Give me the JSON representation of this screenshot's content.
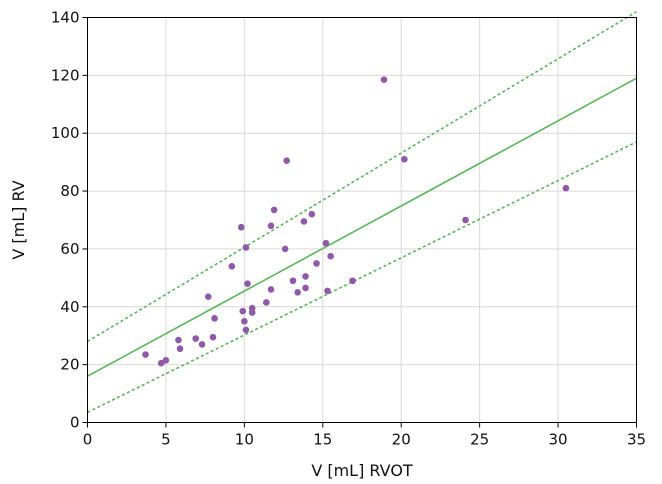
{
  "chart_data": {
    "type": "scatter",
    "title": "",
    "xlabel": "V [mL] RVOT",
    "ylabel": "V [mL] RV",
    "xlim": [
      0,
      35
    ],
    "ylim": [
      0,
      140
    ],
    "xticks": [
      0,
      5,
      10,
      15,
      20,
      25,
      30,
      35
    ],
    "yticks": [
      0,
      20,
      40,
      60,
      80,
      100,
      120,
      140
    ],
    "grid": true,
    "legend": "none",
    "points": [
      {
        "x": 3.7,
        "y": 23.5
      },
      {
        "x": 4.7,
        "y": 20.5
      },
      {
        "x": 5.0,
        "y": 21.5
      },
      {
        "x": 5.8,
        "y": 28.5
      },
      {
        "x": 5.9,
        "y": 25.5
      },
      {
        "x": 6.9,
        "y": 29.0
      },
      {
        "x": 7.3,
        "y": 27.0
      },
      {
        "x": 7.7,
        "y": 43.5
      },
      {
        "x": 8.0,
        "y": 29.5
      },
      {
        "x": 8.1,
        "y": 36.0
      },
      {
        "x": 9.2,
        "y": 54.0
      },
      {
        "x": 9.8,
        "y": 67.5
      },
      {
        "x": 9.9,
        "y": 38.5
      },
      {
        "x": 10.0,
        "y": 35.0
      },
      {
        "x": 10.1,
        "y": 32.0
      },
      {
        "x": 10.1,
        "y": 60.5
      },
      {
        "x": 10.2,
        "y": 48.0
      },
      {
        "x": 10.5,
        "y": 38.0
      },
      {
        "x": 10.5,
        "y": 39.5
      },
      {
        "x": 11.4,
        "y": 41.5
      },
      {
        "x": 11.7,
        "y": 68.0
      },
      {
        "x": 11.7,
        "y": 46.0
      },
      {
        "x": 11.9,
        "y": 73.5
      },
      {
        "x": 12.6,
        "y": 60.0
      },
      {
        "x": 12.7,
        "y": 90.5
      },
      {
        "x": 13.1,
        "y": 49.0
      },
      {
        "x": 13.4,
        "y": 45.0
      },
      {
        "x": 13.8,
        "y": 69.5
      },
      {
        "x": 13.9,
        "y": 46.5
      },
      {
        "x": 13.9,
        "y": 50.5
      },
      {
        "x": 14.3,
        "y": 72.0
      },
      {
        "x": 14.6,
        "y": 55.0
      },
      {
        "x": 15.2,
        "y": 62.0
      },
      {
        "x": 15.3,
        "y": 45.5
      },
      {
        "x": 15.5,
        "y": 57.5
      },
      {
        "x": 16.9,
        "y": 49.0
      },
      {
        "x": 18.9,
        "y": 118.5
      },
      {
        "x": 20.2,
        "y": 91.0
      },
      {
        "x": 24.1,
        "y": 70.0
      },
      {
        "x": 30.5,
        "y": 81.0
      }
    ],
    "regression": {
      "x": [
        0,
        35
      ],
      "y": [
        16,
        119
      ]
    },
    "ci_upper": {
      "x": [
        0,
        35
      ],
      "y": [
        28,
        142
      ]
    },
    "ci_lower": {
      "x": [
        0,
        35
      ],
      "y": [
        3.5,
        97
      ]
    },
    "colors": {
      "points": "#8e5aa8",
      "line": "#5ab55a",
      "grid": "#d9d9d9"
    }
  }
}
